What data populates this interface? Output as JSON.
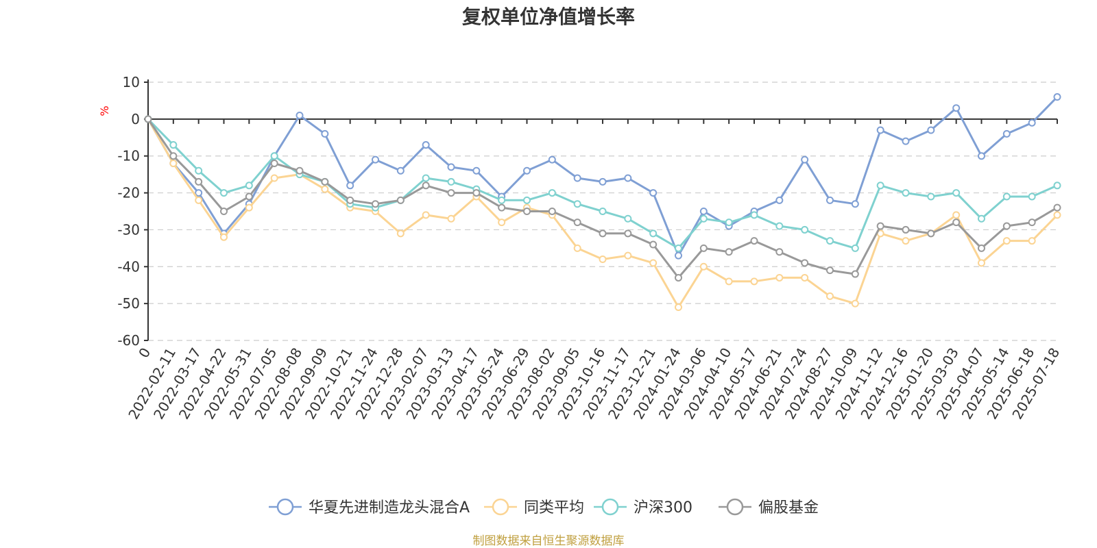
{
  "chart_data": {
    "type": "line",
    "title": "复权单位净值增长率",
    "ylabel": "%",
    "ylim": [
      -60,
      10
    ],
    "yticks": [
      10,
      0,
      -10,
      -20,
      -30,
      -40,
      -50,
      -60
    ],
    "grid": true,
    "legend_position": "bottom",
    "source": "制图数据来自恒生聚源数据库",
    "categories": [
      "0",
      "2022-02-11",
      "2022-03-17",
      "2022-04-22",
      "2022-05-31",
      "2022-07-05",
      "2022-08-08",
      "2022-09-09",
      "2022-10-21",
      "2022-11-24",
      "2022-12-28",
      "2023-02-07",
      "2023-03-13",
      "2023-04-17",
      "2023-05-24",
      "2023-06-29",
      "2023-08-02",
      "2023-09-05",
      "2023-10-16",
      "2023-11-17",
      "2023-12-21",
      "2024-01-24",
      "2024-03-06",
      "2024-04-10",
      "2024-05-17",
      "2024-06-21",
      "2024-07-24",
      "2024-08-27",
      "2024-10-09",
      "2024-11-12",
      "2024-12-16",
      "2025-01-20",
      "2025-03-03",
      "2025-04-07",
      "2025-05-14",
      "2025-06-18",
      "2025-07-18"
    ],
    "series": [
      {
        "name": "华夏先进制造龙头混合A",
        "color": "#7f9fd4",
        "values": [
          0,
          -12,
          -20,
          -31,
          -23,
          -10,
          1,
          -4,
          -18,
          -11,
          -14,
          -7,
          -13,
          -14,
          -21,
          -14,
          -11,
          -16,
          -17,
          -16,
          -20,
          -37,
          -25,
          -29,
          -25,
          -22,
          -11,
          -22,
          -23,
          -3,
          -6,
          -3,
          3,
          -10,
          -4,
          -1,
          6
        ]
      },
      {
        "name": "同类平均",
        "color": "#fbd493",
        "values": [
          0,
          -12,
          -22,
          -32,
          -24,
          -16,
          -15,
          -19,
          -24,
          -25,
          -31,
          -26,
          -27,
          -21,
          -28,
          -24,
          -26,
          -35,
          -38,
          -37,
          -39,
          -51,
          -40,
          -44,
          -44,
          -43,
          -43,
          -48,
          -50,
          -31,
          -33,
          -31,
          -26,
          -39,
          -33,
          -33,
          -26
        ]
      },
      {
        "name": "沪深300",
        "color": "#7fd1cf",
        "values": [
          0,
          -7,
          -14,
          -20,
          -18,
          -10,
          -15,
          -17,
          -23,
          -24,
          -22,
          -16,
          -17,
          -19,
          -22,
          -22,
          -20,
          -23,
          -25,
          -27,
          -31,
          -35,
          -27,
          -28,
          -26,
          -29,
          -30,
          -33,
          -35,
          -18,
          -20,
          -21,
          -20,
          -27,
          -21,
          -21,
          -18
        ]
      },
      {
        "name": "偏股基金",
        "color": "#999999",
        "values": [
          0,
          -10,
          -17,
          -25,
          -21,
          -12,
          -14,
          -17,
          -22,
          -23,
          -22,
          -18,
          -20,
          -20,
          -24,
          -25,
          -25,
          -28,
          -31,
          -31,
          -34,
          -43,
          -35,
          -36,
          -33,
          -36,
          -39,
          -41,
          -42,
          -29,
          -30,
          -31,
          -28,
          -35,
          -29,
          -28,
          -24
        ]
      }
    ]
  }
}
